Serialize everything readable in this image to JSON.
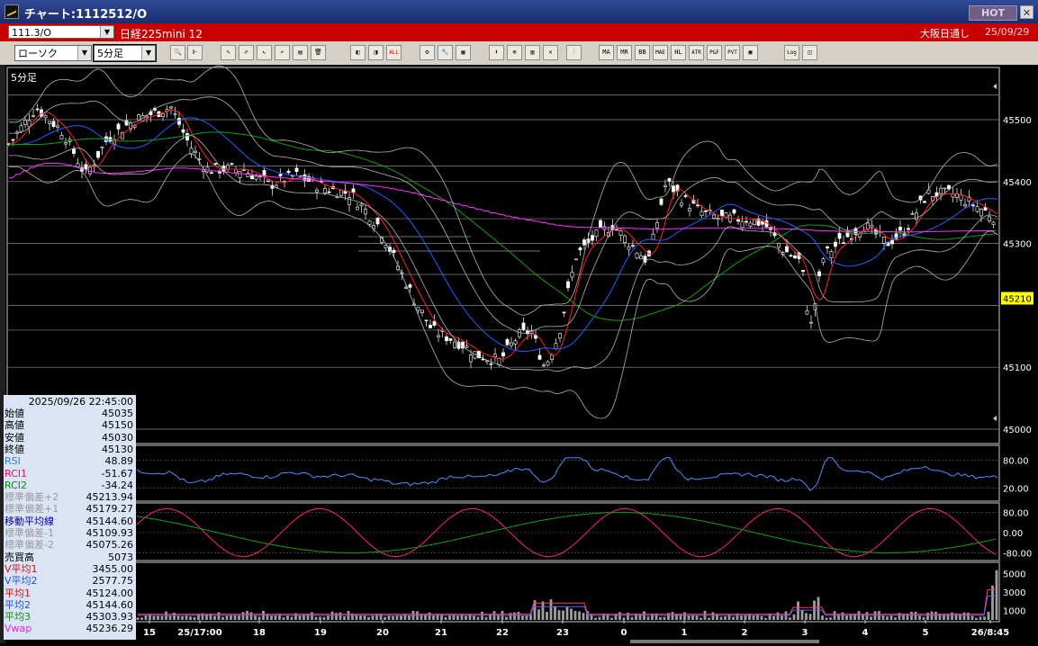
{
  "window": {
    "title": "チャート:1112512/O",
    "hot_label": "HOT",
    "close_label": "✕"
  },
  "symbol_bar": {
    "code": "111.3/O",
    "instrument": "日経225mini 12",
    "market": "大阪日通し",
    "date": "25/09/29"
  },
  "toolbar": {
    "chart_type": "ローソク",
    "period": "5分足",
    "buttons": [
      {
        "name": "zoom-icon",
        "glyph": "🔍"
      },
      {
        "name": "cursor-line-icon",
        "glyph": "⊩"
      },
      {
        "name": "pen-icon",
        "glyph": "✎"
      },
      {
        "name": "draw-icon",
        "glyph": "✐"
      },
      {
        "name": "pointer-icon",
        "glyph": "↖"
      },
      {
        "name": "undo-icon",
        "glyph": "↶"
      },
      {
        "name": "memo-icon",
        "glyph": "▤"
      },
      {
        "name": "trash-icon",
        "glyph": "🗑"
      },
      {
        "name": "candle-left-icon",
        "glyph": "◧"
      },
      {
        "name": "candle-right-icon",
        "glyph": "◨"
      },
      {
        "name": "all-icon",
        "glyph": "ALL"
      },
      {
        "name": "settings-icon",
        "glyph": "⚙"
      },
      {
        "name": "tools-icon",
        "glyph": "🔧"
      },
      {
        "name": "color-icon",
        "glyph": "▦"
      },
      {
        "name": "order-icon",
        "glyph": "⬇"
      },
      {
        "name": "search-chart-icon",
        "glyph": "⊕"
      },
      {
        "name": "bar-chart-icon",
        "glyph": "▥"
      },
      {
        "name": "cross-icon",
        "glyph": "✕"
      },
      {
        "name": "disabled-icon",
        "glyph": "!"
      },
      {
        "name": "ma-icon",
        "glyph": "MA"
      },
      {
        "name": "mr-icon",
        "glyph": "MR"
      },
      {
        "name": "bb-icon",
        "glyph": "BB"
      },
      {
        "name": "mae-icon",
        "glyph": "MAE"
      },
      {
        "name": "hl-icon",
        "glyph": "HL"
      },
      {
        "name": "atr-icon",
        "glyph": "ATR"
      },
      {
        "name": "pb-icon",
        "glyph": "P&F"
      },
      {
        "name": "pvt-icon",
        "glyph": "PVT"
      },
      {
        "name": "frame-icon",
        "glyph": "▣"
      },
      {
        "name": "log-icon",
        "glyph": "Log"
      },
      {
        "name": "window-icon",
        "glyph": "◫"
      }
    ]
  },
  "chart": {
    "period_label": "5分足",
    "price_ticks": [
      "45500",
      "45400",
      "45300",
      "45210",
      "45100",
      "45000"
    ],
    "current_price": "45210",
    "rsi_ticks": [
      "80.00",
      "20.00"
    ],
    "rci_ticks": [
      "80.00",
      "0.00",
      "-80.00"
    ],
    "volume_ticks": [
      "5000",
      "3000",
      "1000"
    ],
    "x_labels": [
      "15",
      "25/17:00",
      "18",
      "19",
      "20",
      "21",
      "22",
      "23",
      "0",
      "1",
      "2",
      "3",
      "4",
      "5",
      "26/8:45"
    ],
    "colors": {
      "up": "#ffffff",
      "down": "#ffffff",
      "ma_short": "#ff2020",
      "ma_mid": "#2060ff",
      "ma_long": "#10a010",
      "vwap": "#ff33ff",
      "bb": "#b4b4b4",
      "rsi": "#4a90ff",
      "rci1": "#ff2080",
      "rci2": "#10a010"
    }
  },
  "data_panel": {
    "datetime": "2025/09/26  22:45:00",
    "rows": [
      {
        "label": "始値",
        "value": "45035",
        "color": "#000000"
      },
      {
        "label": "高値",
        "value": "45150",
        "color": "#000000"
      },
      {
        "label": "安値",
        "value": "45030",
        "color": "#000000"
      },
      {
        "label": "終値",
        "value": "45130",
        "color": "#000000"
      },
      {
        "label": "RSI",
        "value": "48.89",
        "color": "#3a7be0"
      },
      {
        "label": "RCI1",
        "value": "-51.67",
        "color": "#e01060"
      },
      {
        "label": "RCI2",
        "value": "-34.24",
        "color": "#108a10"
      },
      {
        "label": "標準偏差+2",
        "value": "45213.94",
        "color": "#9a9a9a"
      },
      {
        "label": "標準偏差+1",
        "value": "45179.27",
        "color": "#9a9a9a"
      },
      {
        "label": "移動平均線",
        "value": "45144.60",
        "color": "#0000aa"
      },
      {
        "label": "標準偏差-1",
        "value": "45109.93",
        "color": "#9a9a9a"
      },
      {
        "label": "標準偏差-2",
        "value": "45075.26",
        "color": "#9a9a9a"
      },
      {
        "label": "売買高",
        "value": "5073",
        "color": "#000000"
      },
      {
        "label": "V平均1",
        "value": "3455.00",
        "color": "#d01010"
      },
      {
        "label": "V平均2",
        "value": "2577.75",
        "color": "#2050d0"
      },
      {
        "label": "平均1",
        "value": "45124.00",
        "color": "#d01010"
      },
      {
        "label": "平均2",
        "value": "45144.60",
        "color": "#2050d0"
      },
      {
        "label": "平均3",
        "value": "45303.93",
        "color": "#108a10"
      },
      {
        "label": "Vwap",
        "value": "45236.29",
        "color": "#e020e0"
      }
    ]
  }
}
